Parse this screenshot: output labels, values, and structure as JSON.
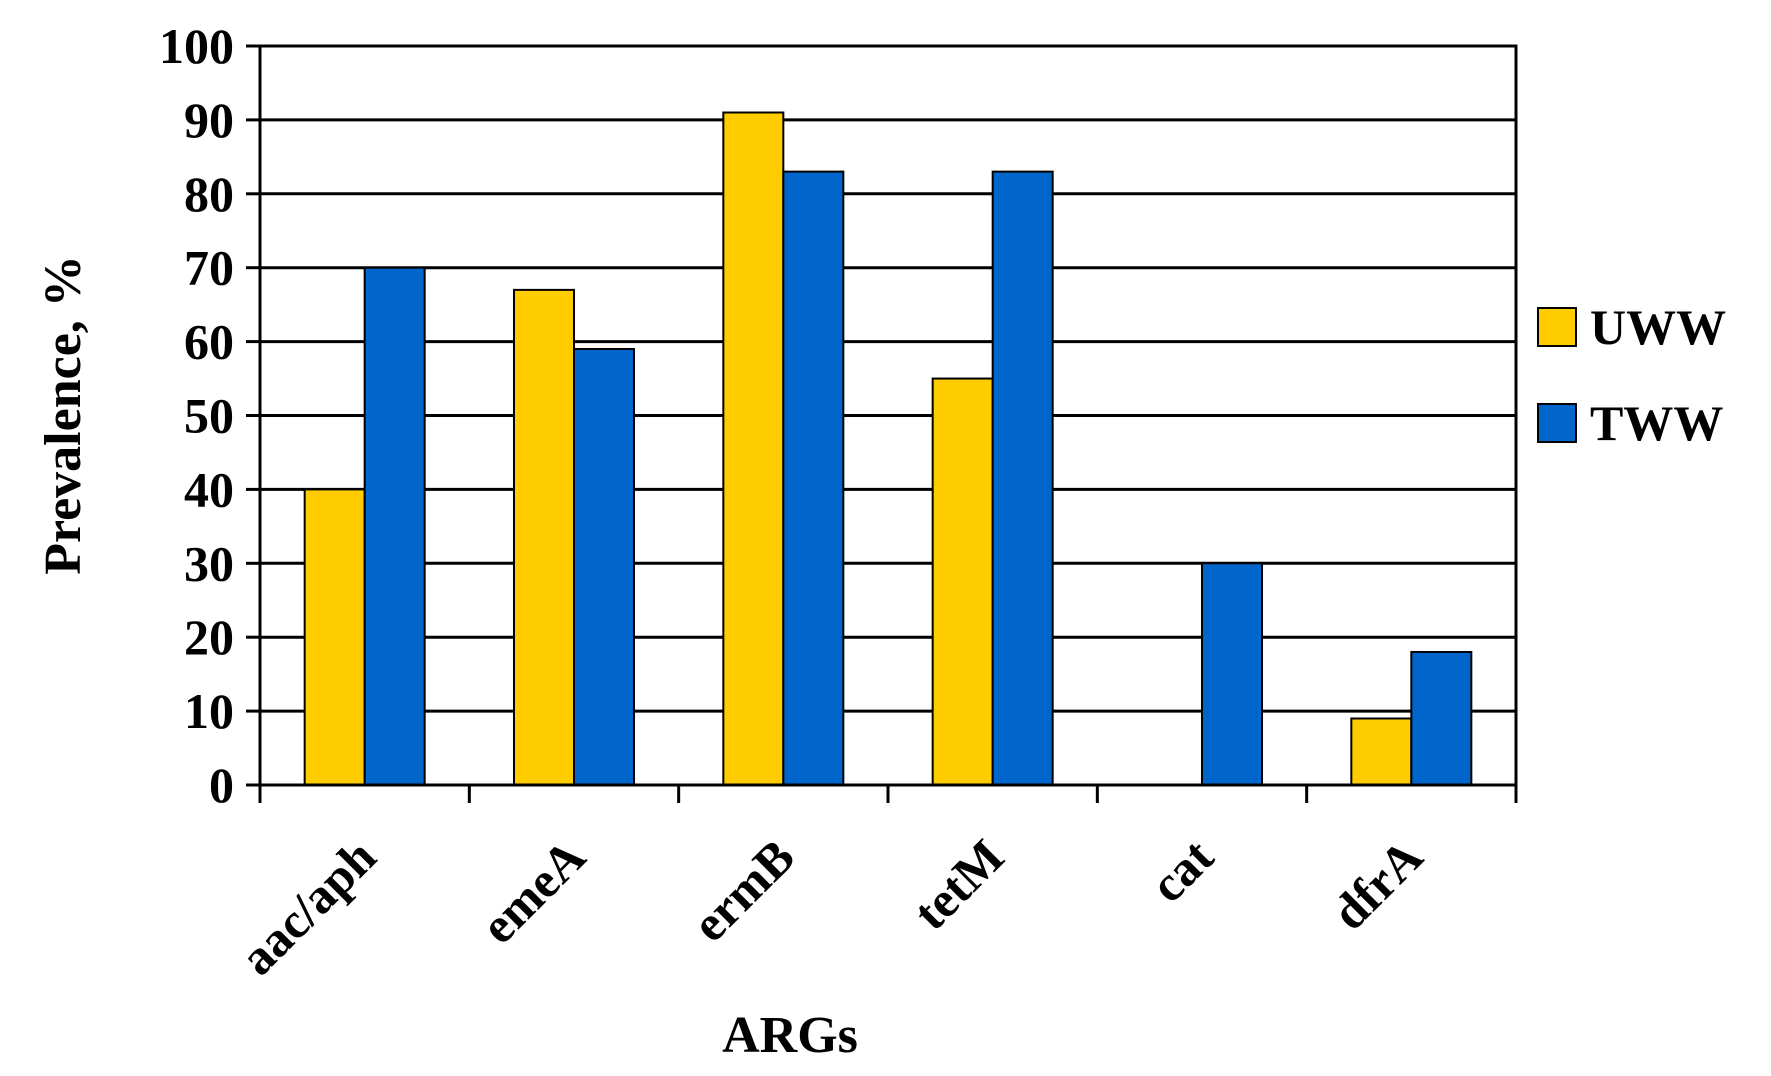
{
  "chart_data": {
    "type": "bar",
    "categories": [
      "aac/aph",
      "emeA",
      "ermB",
      "tetM",
      "cat",
      "dfrA"
    ],
    "series": [
      {
        "name": "UWW",
        "color": "#FFCC00",
        "values": [
          40,
          67,
          91,
          55,
          0,
          9
        ]
      },
      {
        "name": "TWW",
        "color": "#0066CC",
        "values": [
          70,
          59,
          83,
          83,
          30,
          18
        ]
      }
    ],
    "xlabel": "ARGs",
    "ylabel": "Prevalence, %",
    "ylim": [
      0,
      100
    ],
    "yticks": [
      0,
      10,
      20,
      30,
      40,
      50,
      60,
      70,
      80,
      90,
      100
    ],
    "grid": true,
    "legend": "right"
  }
}
